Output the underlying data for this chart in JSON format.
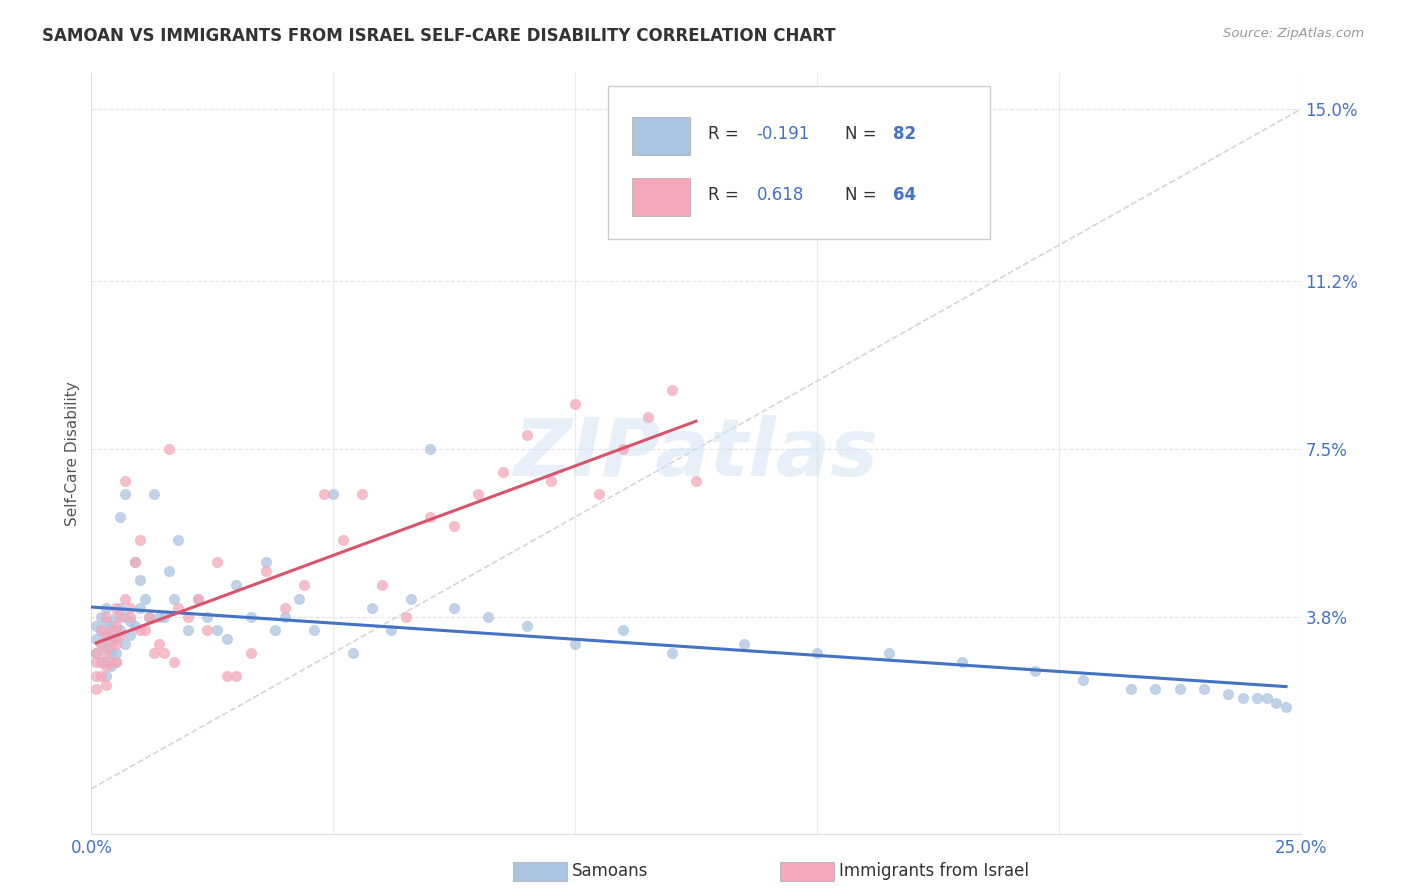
{
  "title": "SAMOAN VS IMMIGRANTS FROM ISRAEL SELF-CARE DISABILITY CORRELATION CHART",
  "source": "Source: ZipAtlas.com",
  "ylabel": "Self-Care Disability",
  "xlim": [
    0.0,
    0.25
  ],
  "ylim": [
    -0.01,
    0.158
  ],
  "yticks_right": [
    0.15,
    0.112,
    0.075,
    0.038,
    0.0
  ],
  "ytick_labels_right": [
    "15.0%",
    "11.2%",
    "7.5%",
    "3.8%",
    ""
  ],
  "watermark": "ZIPatlas",
  "legend_R1": "-0.191",
  "legend_N1": "82",
  "legend_R2": "0.618",
  "legend_N2": "64",
  "samoans_color": "#aac4e2",
  "israel_color": "#f4a8ba",
  "samoans_line_color": "#4472c4",
  "israel_line_color": "#d9546a",
  "trendline_dash_color": "#cccccc",
  "background_color": "#ffffff",
  "grid_color": "#dddddd",
  "samoans_x": [
    0.001,
    0.001,
    0.001,
    0.002,
    0.002,
    0.002,
    0.002,
    0.003,
    0.003,
    0.003,
    0.003,
    0.003,
    0.003,
    0.004,
    0.004,
    0.004,
    0.004,
    0.005,
    0.005,
    0.005,
    0.005,
    0.005,
    0.006,
    0.006,
    0.006,
    0.007,
    0.007,
    0.007,
    0.008,
    0.008,
    0.009,
    0.009,
    0.01,
    0.01,
    0.011,
    0.012,
    0.013,
    0.014,
    0.015,
    0.016,
    0.017,
    0.018,
    0.02,
    0.022,
    0.024,
    0.026,
    0.028,
    0.03,
    0.033,
    0.036,
    0.038,
    0.04,
    0.043,
    0.046,
    0.05,
    0.054,
    0.058,
    0.062,
    0.066,
    0.07,
    0.075,
    0.082,
    0.09,
    0.1,
    0.11,
    0.12,
    0.135,
    0.15,
    0.165,
    0.18,
    0.195,
    0.205,
    0.215,
    0.22,
    0.225,
    0.23,
    0.235,
    0.238,
    0.241,
    0.243,
    0.245,
    0.247
  ],
  "samoans_y": [
    0.036,
    0.033,
    0.03,
    0.038,
    0.035,
    0.032,
    0.028,
    0.04,
    0.037,
    0.034,
    0.031,
    0.028,
    0.025,
    0.036,
    0.033,
    0.03,
    0.027,
    0.038,
    0.035,
    0.033,
    0.03,
    0.028,
    0.04,
    0.06,
    0.035,
    0.038,
    0.065,
    0.032,
    0.037,
    0.034,
    0.05,
    0.036,
    0.04,
    0.046,
    0.042,
    0.038,
    0.065,
    0.038,
    0.038,
    0.048,
    0.042,
    0.055,
    0.035,
    0.042,
    0.038,
    0.035,
    0.033,
    0.045,
    0.038,
    0.05,
    0.035,
    0.038,
    0.042,
    0.035,
    0.065,
    0.03,
    0.04,
    0.035,
    0.042,
    0.075,
    0.04,
    0.038,
    0.036,
    0.032,
    0.035,
    0.03,
    0.032,
    0.03,
    0.03,
    0.028,
    0.026,
    0.024,
    0.022,
    0.022,
    0.022,
    0.022,
    0.021,
    0.02,
    0.02,
    0.02,
    0.019,
    0.018
  ],
  "israel_x": [
    0.001,
    0.001,
    0.001,
    0.001,
    0.002,
    0.002,
    0.002,
    0.002,
    0.003,
    0.003,
    0.003,
    0.003,
    0.003,
    0.004,
    0.004,
    0.004,
    0.005,
    0.005,
    0.005,
    0.005,
    0.006,
    0.006,
    0.007,
    0.007,
    0.008,
    0.008,
    0.009,
    0.01,
    0.01,
    0.011,
    0.012,
    0.013,
    0.014,
    0.015,
    0.016,
    0.017,
    0.018,
    0.02,
    0.022,
    0.024,
    0.026,
    0.028,
    0.03,
    0.033,
    0.036,
    0.04,
    0.044,
    0.048,
    0.052,
    0.056,
    0.06,
    0.065,
    0.07,
    0.075,
    0.08,
    0.085,
    0.09,
    0.095,
    0.1,
    0.105,
    0.11,
    0.115,
    0.12,
    0.125
  ],
  "israel_y": [
    0.03,
    0.028,
    0.025,
    0.022,
    0.035,
    0.032,
    0.028,
    0.025,
    0.038,
    0.034,
    0.03,
    0.027,
    0.023,
    0.035,
    0.032,
    0.028,
    0.04,
    0.036,
    0.032,
    0.028,
    0.038,
    0.034,
    0.042,
    0.068,
    0.04,
    0.038,
    0.05,
    0.035,
    0.055,
    0.035,
    0.038,
    0.03,
    0.032,
    0.03,
    0.075,
    0.028,
    0.04,
    0.038,
    0.042,
    0.035,
    0.05,
    0.025,
    0.025,
    0.03,
    0.048,
    0.04,
    0.045,
    0.065,
    0.055,
    0.065,
    0.045,
    0.038,
    0.06,
    0.058,
    0.065,
    0.07,
    0.078,
    0.068,
    0.085,
    0.065,
    0.075,
    0.082,
    0.088,
    0.068
  ]
}
